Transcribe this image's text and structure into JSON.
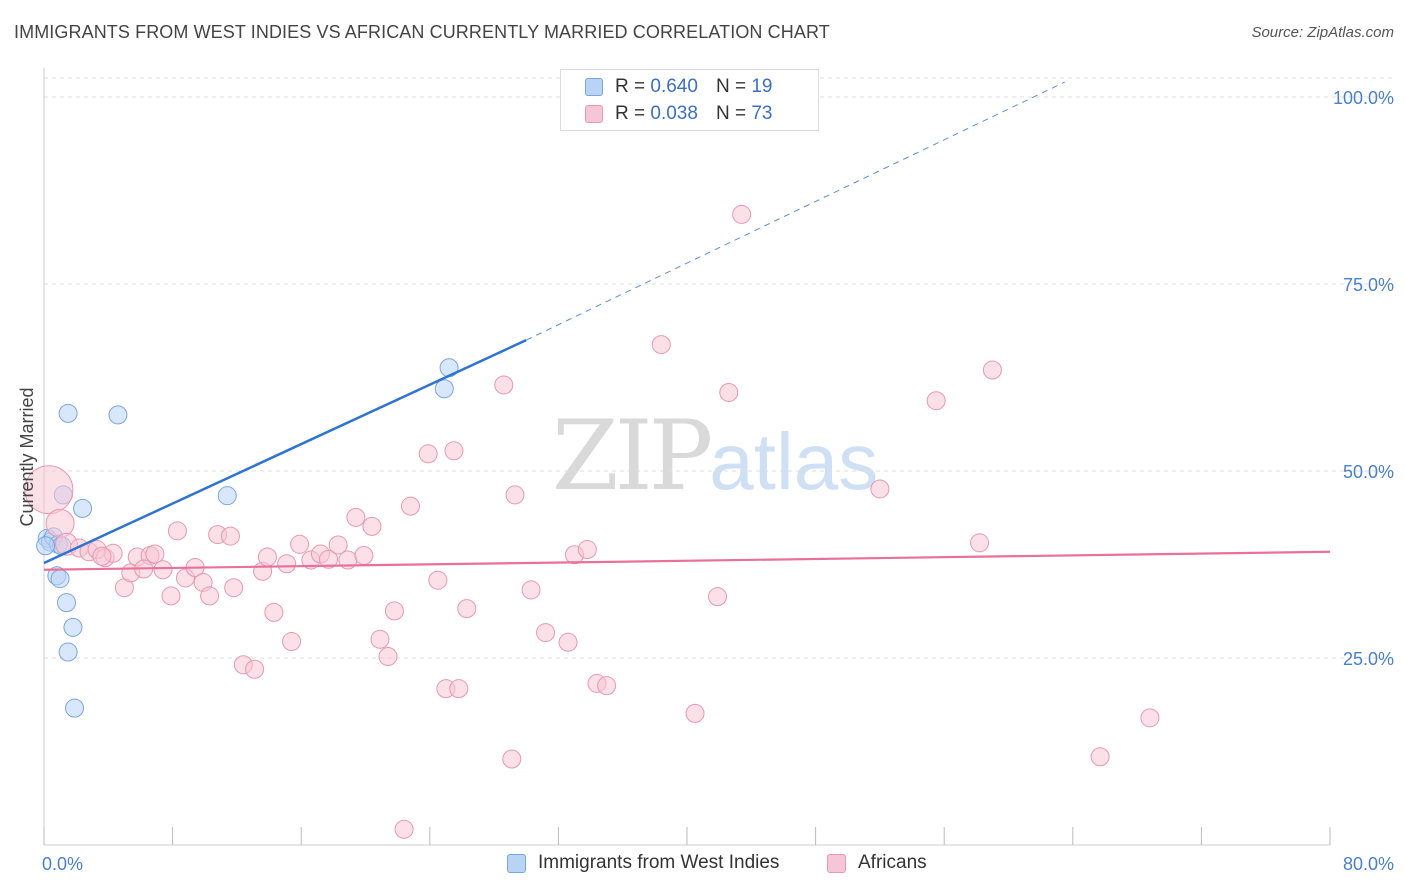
{
  "title": "IMMIGRANTS FROM WEST INDIES VS AFRICAN CURRENTLY MARRIED CORRELATION CHART",
  "source": "Source: ZipAtlas.com",
  "watermark": {
    "zip": "ZIP",
    "atlas": "atlas"
  },
  "legend": {
    "r_label": "R =",
    "n_label": "N =",
    "rows": [
      {
        "series": "Immigrants from West Indies",
        "r": "0.640",
        "n": "19"
      },
      {
        "series": "Africans",
        "r": "0.038",
        "n": "73"
      }
    ]
  },
  "colors": {
    "blue_fill": "#b9d3f5",
    "blue_stroke": "#7aa6e0",
    "blue_line": "#2f74d0",
    "pink_fill": "#f7c6d6",
    "pink_stroke": "#e898b4",
    "pink_line": "#e8709a",
    "tick_label": "#4a7fd0",
    "grid": "#dddddd"
  },
  "chart_data": {
    "type": "scatter",
    "title": "IMMIGRANTS FROM WEST INDIES VS AFRICAN CURRENTLY MARRIED CORRELATION CHART",
    "xlabel": "",
    "ylabel": "Currently Married",
    "xlim": [
      0,
      80
    ],
    "ylim": [
      0,
      102
    ],
    "x_tick_labels": [
      {
        "value": 0,
        "label": "0.0%"
      },
      {
        "value": 80,
        "label": "80.0%"
      }
    ],
    "y_tick_labels": [
      {
        "value": 25,
        "label": "25.0%"
      },
      {
        "value": 50,
        "label": "50.0%"
      },
      {
        "value": 75,
        "label": "75.0%"
      },
      {
        "value": 100,
        "label": "100.0%"
      }
    ],
    "series": [
      {
        "name": "Immigrants from West Indies",
        "color": "blue",
        "points": [
          [
            0.2,
            41.0,
            9
          ],
          [
            0.4,
            40.5,
            9
          ],
          [
            0.6,
            41.2,
            9
          ],
          [
            0.9,
            40.2,
            9
          ],
          [
            1.1,
            40.0,
            9
          ],
          [
            0.8,
            36.0,
            9
          ],
          [
            1.0,
            35.6,
            9
          ],
          [
            1.4,
            32.4,
            9
          ],
          [
            1.5,
            25.8,
            9
          ],
          [
            1.8,
            29.1,
            9
          ],
          [
            1.9,
            18.3,
            9
          ],
          [
            1.5,
            57.7,
            9
          ],
          [
            4.6,
            57.5,
            9
          ],
          [
            1.2,
            46.8,
            9
          ],
          [
            2.4,
            45.0,
            9
          ],
          [
            11.4,
            46.7,
            9
          ],
          [
            25.2,
            63.8,
            9
          ],
          [
            24.9,
            61.0,
            9
          ],
          [
            0.1,
            40.0,
            9
          ]
        ],
        "trend": {
          "x0": 0,
          "y0": 37.7,
          "x1": 30,
          "y1": 67.5,
          "dash_x1": 63.5,
          "dash_y1": 102
        }
      },
      {
        "name": "Africans",
        "color": "pink",
        "points": [
          [
            0.3,
            47.5,
            24
          ],
          [
            1.0,
            43.0,
            14
          ],
          [
            1.4,
            40.2,
            11
          ],
          [
            2.2,
            39.7,
            9
          ],
          [
            2.8,
            39.2,
            9
          ],
          [
            3.3,
            39.5,
            9
          ],
          [
            3.8,
            38.4,
            9
          ],
          [
            4.3,
            39.0,
            9
          ],
          [
            5.0,
            34.4,
            9
          ],
          [
            5.4,
            36.4,
            9
          ],
          [
            5.8,
            38.5,
            9
          ],
          [
            6.6,
            38.7,
            9
          ],
          [
            6.9,
            38.9,
            9
          ],
          [
            7.4,
            36.8,
            9
          ],
          [
            7.9,
            33.3,
            9
          ],
          [
            8.3,
            42.0,
            9
          ],
          [
            8.8,
            35.7,
            9
          ],
          [
            9.4,
            37.1,
            9
          ],
          [
            9.9,
            35.1,
            9
          ],
          [
            10.3,
            33.3,
            9
          ],
          [
            10.8,
            41.5,
            9
          ],
          [
            11.6,
            41.3,
            9
          ],
          [
            11.8,
            34.4,
            9
          ],
          [
            12.4,
            24.1,
            9
          ],
          [
            13.1,
            23.5,
            9
          ],
          [
            13.6,
            36.6,
            9
          ],
          [
            13.9,
            38.5,
            9
          ],
          [
            14.3,
            31.1,
            9
          ],
          [
            15.1,
            37.6,
            9
          ],
          [
            15.4,
            27.2,
            9
          ],
          [
            15.9,
            40.2,
            9
          ],
          [
            16.6,
            38.1,
            9
          ],
          [
            17.2,
            38.9,
            9
          ],
          [
            17.7,
            38.2,
            9
          ],
          [
            18.3,
            40.1,
            9
          ],
          [
            18.9,
            38.1,
            9
          ],
          [
            19.4,
            43.8,
            9
          ],
          [
            19.9,
            38.7,
            9
          ],
          [
            20.4,
            42.6,
            9
          ],
          [
            20.9,
            27.5,
            9
          ],
          [
            21.4,
            25.2,
            9
          ],
          [
            21.8,
            31.3,
            9
          ],
          [
            22.4,
            2.1,
            9
          ],
          [
            22.8,
            45.3,
            9
          ],
          [
            23.9,
            52.3,
            9
          ],
          [
            24.5,
            35.4,
            9
          ],
          [
            25.0,
            20.9,
            9
          ],
          [
            25.5,
            52.7,
            9
          ],
          [
            25.8,
            20.9,
            9
          ],
          [
            26.3,
            31.6,
            9
          ],
          [
            28.6,
            61.5,
            9
          ],
          [
            29.1,
            11.5,
            9
          ],
          [
            29.3,
            46.8,
            9
          ],
          [
            30.3,
            34.1,
            9
          ],
          [
            31.2,
            28.4,
            9
          ],
          [
            32.6,
            27.1,
            9
          ],
          [
            33.0,
            38.8,
            9
          ],
          [
            33.8,
            39.5,
            9
          ],
          [
            34.4,
            21.6,
            9
          ],
          [
            35.0,
            21.3,
            9
          ],
          [
            38.4,
            66.9,
            9
          ],
          [
            40.5,
            17.6,
            9
          ],
          [
            41.9,
            33.2,
            9
          ],
          [
            42.6,
            60.5,
            9
          ],
          [
            43.4,
            84.3,
            9
          ],
          [
            52.0,
            47.6,
            9
          ],
          [
            55.5,
            59.4,
            9
          ],
          [
            58.2,
            40.4,
            9
          ],
          [
            59.0,
            63.5,
            9
          ],
          [
            65.7,
            11.8,
            9
          ],
          [
            68.8,
            17.0,
            9
          ],
          [
            3.6,
            38.6,
            9
          ],
          [
            6.2,
            36.9,
            9
          ]
        ],
        "trend": {
          "x0": 0,
          "y0": 36.8,
          "x1": 80,
          "y1": 39.2
        }
      }
    ]
  }
}
